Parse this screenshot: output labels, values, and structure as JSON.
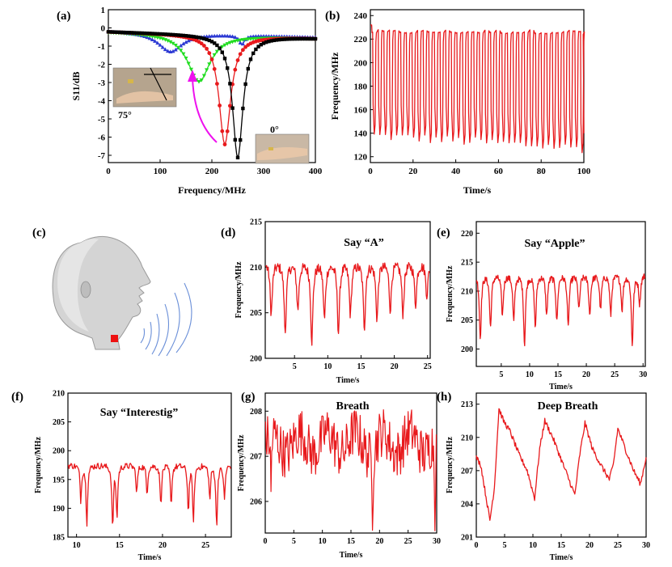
{
  "figure": {
    "panel_letters": [
      "(a)",
      "(b)",
      "(c)",
      "(d)",
      "(e)",
      "(f)",
      "(g)",
      "(h)"
    ]
  },
  "colors": {
    "red": "#e8191c",
    "blue": "#2e3bd4",
    "green": "#22dd22",
    "black": "#000000",
    "magenta": "#ee11ee",
    "head_gray": "#c8c8c8",
    "wave_blue": "#6a8fd8",
    "sensor_red": "#ee1111"
  },
  "annotations": {
    "a_angle_bent": "75°",
    "a_angle_flat": "0°",
    "d_text": "Say “A”",
    "e_text": "Say “Apple”",
    "f_text": "Say “Interestig”",
    "g_text": "Breath",
    "h_text": "Deep Breath"
  },
  "chart_data": [
    {
      "panel": "(a)",
      "type": "line",
      "xlabel": "Frequency/MHz",
      "ylabel": "S11/dB",
      "xlim": [
        0,
        400
      ],
      "ylim": [
        -7.4,
        1
      ],
      "xticks": [
        0,
        100,
        200,
        300,
        400
      ],
      "yticks": [
        1,
        0,
        -1,
        -2,
        -3,
        -4,
        -5,
        -6,
        -7
      ],
      "tick_labels_x": [
        "0",
        "100",
        "200",
        "300",
        "400"
      ],
      "tick_labels_y": [
        "1",
        "0",
        "-1",
        "-2",
        "-3",
        "-4",
        "-5",
        "-6",
        "-7"
      ],
      "series": [
        {
          "color": "black",
          "marker": "square",
          "dip_x": 250,
          "dip_y": -6.9,
          "width": 18,
          "base": -0.2
        },
        {
          "color": "red",
          "marker": "circle",
          "dip_x": 225,
          "dip_y": -6.2,
          "width": 20,
          "base": -0.2
        },
        {
          "color": "green",
          "marker": "triangle-down",
          "dip_x": 175,
          "dip_y": -2.8,
          "width": 38,
          "base": -0.2
        },
        {
          "color": "blue",
          "marker": "triangle-up",
          "dip_x": 120,
          "dip_y": -1.2,
          "width": 42,
          "base": -0.15
        }
      ],
      "secondary_dips": [
        {
          "x": 258,
          "y": -0.6
        }
      ]
    },
    {
      "panel": "(b)",
      "type": "line",
      "xlabel": "Time/s",
      "ylabel": "Frequency/MHz",
      "xlim": [
        0,
        100
      ],
      "ylim": [
        115,
        245
      ],
      "xticks": [
        0,
        20,
        40,
        60,
        80,
        100
      ],
      "yticks": [
        120,
        140,
        160,
        180,
        200,
        220,
        240
      ],
      "tick_labels_x": [
        "0",
        "20",
        "40",
        "60",
        "80",
        "100"
      ],
      "tick_labels_y": [
        "120",
        "140",
        "160",
        "180",
        "200",
        "220",
        "240"
      ],
      "cycles": 38,
      "high": 228,
      "low_start": 138,
      "low_end": 127
    },
    {
      "panel": "(d)",
      "type": "line",
      "xlabel": "Time/s",
      "ylabel": "Frequency/MHz",
      "xlim": [
        0.6,
        25.4
      ],
      "ylim": [
        200,
        215
      ],
      "xticks": [
        5,
        10,
        15,
        20,
        25
      ],
      "yticks": [
        200,
        205,
        210,
        215
      ],
      "tick_labels_x": [
        "5",
        "10",
        "15",
        "20",
        "25"
      ],
      "tick_labels_y": [
        "200",
        "205",
        "210",
        "215"
      ],
      "events": [
        1.5,
        3.6,
        5.5,
        7.6,
        9.5,
        11.6,
        13.4,
        15.5,
        17.4,
        19.4,
        21.3,
        23.2,
        24.9
      ],
      "event_depths": [
        5.5,
        7.5,
        5.0,
        8.5,
        6.0,
        7.5,
        5.5,
        7.0,
        6.0,
        5.0,
        5.5,
        4.5,
        3.5
      ],
      "baseline": 210.5
    },
    {
      "panel": "(e)",
      "type": "line",
      "xlabel": "Time/s",
      "ylabel": "Frequency/MHz",
      "xlim": [
        0.6,
        30.4
      ],
      "ylim": [
        197,
        222
      ],
      "xticks": [
        5,
        10,
        15,
        20,
        25,
        30
      ],
      "yticks": [
        200,
        205,
        210,
        215,
        220
      ],
      "tick_labels_x": [
        "5",
        "10",
        "15",
        "20",
        "25",
        "30"
      ],
      "tick_labels_y": [
        "200",
        "205",
        "210",
        "215",
        "220"
      ],
      "events": [
        1.3,
        3.1,
        5.2,
        7.2,
        9.1,
        11.0,
        13.0,
        14.8,
        16.8,
        18.7,
        20.6,
        22.5,
        24.3,
        26.3,
        28.1,
        29.4
      ],
      "event_depths": [
        11,
        9,
        7,
        8,
        12,
        9,
        7,
        8,
        9,
        6,
        7,
        6,
        7,
        6,
        12,
        5
      ],
      "baseline": 213
    },
    {
      "panel": "(f)",
      "type": "line",
      "xlabel": "Time/s",
      "ylabel": "Frequency/MHz",
      "xlim": [
        9,
        28
      ],
      "ylim": [
        185,
        210
      ],
      "xticks": [
        10,
        15,
        20,
        25
      ],
      "yticks": [
        185,
        190,
        195,
        200,
        205,
        210
      ],
      "tick_labels_x": [
        "10",
        "15",
        "20",
        "25"
      ],
      "tick_labels_y": [
        "185",
        "190",
        "195",
        "200",
        "205",
        "210"
      ],
      "events": [
        10.5,
        11.2,
        14.2,
        14.7,
        17.0,
        18.2,
        19.8,
        21.0,
        23.0,
        23.6,
        25.5,
        26.3,
        27.2
      ],
      "event_depths": [
        6,
        10,
        11,
        9,
        5,
        5,
        7,
        7,
        8,
        10,
        6,
        11,
        6
      ],
      "baseline": 197.5
    },
    {
      "panel": "(g)",
      "type": "line",
      "xlabel": "Time/s",
      "ylabel": "Frequency/MHz",
      "xlim": [
        0,
        30
      ],
      "ylim": [
        205.3,
        208.4
      ],
      "xticks": [
        0,
        5,
        10,
        15,
        20,
        25,
        30
      ],
      "yticks": [
        206,
        207,
        208
      ],
      "tick_labels_x": [
        "0",
        "5",
        "10",
        "15",
        "20",
        "25",
        "30"
      ],
      "tick_labels_y": [
        "206",
        "207",
        "208"
      ],
      "baseline": 207.3,
      "noise_amp": 0.55,
      "dips": [
        {
          "x": 1.0,
          "y": 205.9
        },
        {
          "x": 18.8,
          "y": 205.9
        },
        {
          "x": 29.7,
          "y": 205.4
        }
      ]
    },
    {
      "panel": "(h)",
      "type": "line",
      "xlabel": "Time/s",
      "ylabel": "Frequency/MHz",
      "xlim": [
        0,
        30
      ],
      "ylim": [
        201,
        214
      ],
      "xticks": [
        0,
        5,
        10,
        15,
        20,
        25,
        30
      ],
      "yticks": [
        201,
        204,
        207,
        210,
        213
      ],
      "tick_labels_x": [
        "0",
        "5",
        "10",
        "15",
        "20",
        "25",
        "30"
      ],
      "tick_labels_y": [
        "201",
        "204",
        "207",
        "210",
        "213"
      ],
      "points": [
        [
          0,
          208.2
        ],
        [
          0.8,
          207.5
        ],
        [
          1.6,
          205
        ],
        [
          2.4,
          202.5
        ],
        [
          3.2,
          205.5
        ],
        [
          4.0,
          212.6
        ],
        [
          4.8,
          211.5
        ],
        [
          6,
          210.5
        ],
        [
          7.5,
          208.5
        ],
        [
          9,
          207
        ],
        [
          10.3,
          204.5
        ],
        [
          11.2,
          209
        ],
        [
          12.1,
          211.5
        ],
        [
          13.5,
          210
        ],
        [
          15,
          208
        ],
        [
          16.5,
          206
        ],
        [
          17.4,
          204.8
        ],
        [
          18.3,
          208.5
        ],
        [
          19.2,
          211.3
        ],
        [
          20.5,
          209
        ],
        [
          22,
          207.5
        ],
        [
          23.5,
          206.2
        ],
        [
          24.2,
          207.5
        ],
        [
          25,
          210.8
        ],
        [
          26.3,
          209
        ],
        [
          27.8,
          207
        ],
        [
          29,
          205.8
        ],
        [
          30,
          208.2
        ]
      ]
    }
  ]
}
